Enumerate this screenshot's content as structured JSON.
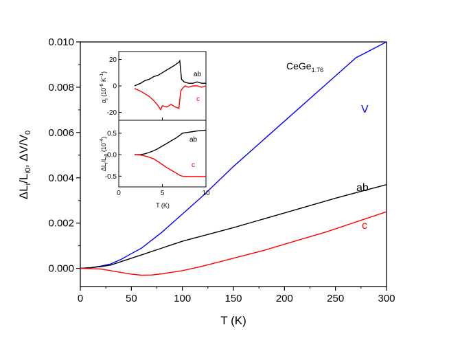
{
  "chart_data": {
    "main": {
      "type": "line",
      "xlabel": "T (K)",
      "ylabel": "ΔL_i/L_i0, ΔV/V_0",
      "xlim": [
        0,
        300
      ],
      "ylim": [
        -0.0008,
        0.01
      ],
      "xticks": [
        "0",
        "50",
        "100",
        "150",
        "200",
        "250",
        "300"
      ],
      "yticks": [
        "0.000",
        "0.002",
        "0.004",
        "0.006",
        "0.008",
        "0.010"
      ],
      "compound": {
        "base": "CeGe",
        "sub": "1.76"
      },
      "series": [
        {
          "name": "V",
          "color": "#0000ff",
          "x": [
            0,
            10,
            20,
            30,
            40,
            50,
            60,
            70,
            80,
            100,
            120,
            150,
            180,
            210,
            240,
            270,
            300
          ],
          "y": [
            0.0,
            3e-05,
            0.0001,
            0.0002,
            0.0004,
            0.00065,
            0.0009,
            0.00125,
            0.0016,
            0.0024,
            0.0032,
            0.0045,
            0.0057,
            0.0069,
            0.0081,
            0.0093,
            0.0104
          ]
        },
        {
          "name": "ab",
          "color": "#000000",
          "x": [
            0,
            10,
            20,
            30,
            40,
            50,
            60,
            80,
            100,
            150,
            200,
            250,
            300
          ],
          "y": [
            0.0,
            3e-05,
            8e-05,
            0.00015,
            0.0003,
            0.00045,
            0.0006,
            0.0009,
            0.0012,
            0.0018,
            0.00245,
            0.0031,
            0.0037
          ]
        },
        {
          "name": "c",
          "color": "#ff0000",
          "x": [
            0,
            10,
            20,
            30,
            40,
            50,
            60,
            70,
            80,
            100,
            120,
            150,
            180,
            210,
            240,
            270,
            300
          ],
          "y": [
            0.0,
            -1e-05,
            -3e-05,
            -0.0001,
            -0.00018,
            -0.00025,
            -0.0003,
            -0.00029,
            -0.00024,
            -0.0001,
            0.0001,
            0.00045,
            0.0008,
            0.0012,
            0.0016,
            0.00205,
            0.0025
          ]
        }
      ]
    },
    "inset_top": {
      "type": "line",
      "ylabel": "α_i (10^-6 K^-1)",
      "xlim": [
        0,
        10
      ],
      "ylim": [
        -26,
        26
      ],
      "yticks": [
        "20",
        "0",
        "-20"
      ],
      "series": [
        {
          "name": "ab",
          "color": "#000000",
          "x": [
            1.8,
            2.5,
            3.0,
            3.5,
            4.0,
            4.5,
            5.0,
            5.5,
            6.0,
            6.5,
            6.9,
            7.0,
            7.2,
            7.5,
            8.0,
            8.5,
            9.0,
            9.5,
            10.0
          ],
          "y": [
            0,
            2,
            4,
            5,
            7,
            8,
            10,
            12,
            14,
            16,
            18,
            19,
            5,
            3,
            2,
            2,
            3,
            2,
            2
          ]
        },
        {
          "name": "c",
          "color": "#ff0000",
          "x": [
            1.8,
            2.5,
            3.0,
            3.5,
            4.0,
            4.5,
            4.8,
            5.0,
            5.5,
            6.0,
            6.5,
            6.9,
            7.1,
            7.3,
            7.6,
            8.0,
            8.5,
            9.0,
            9.5,
            10.0
          ],
          "y": [
            -2,
            -4,
            -6,
            -8,
            -11,
            -15,
            -18,
            -15,
            -16,
            -14,
            -16,
            -17,
            -4,
            -2,
            0,
            -1,
            0,
            0,
            -1,
            0
          ]
        }
      ]
    },
    "inset_bottom": {
      "type": "line",
      "xlabel": "T (K)",
      "ylabel": "ΔL_i/L_i0 (10^-4)",
      "xlim": [
        0,
        10
      ],
      "ylim": [
        -0.75,
        0.8
      ],
      "xticks": [
        "0",
        "5",
        "10"
      ],
      "yticks": [
        "0.5",
        "0.0",
        "-0.5"
      ],
      "series": [
        {
          "name": "ab",
          "color": "#000000",
          "x": [
            1.8,
            2.5,
            3,
            3.5,
            4,
            4.5,
            5,
            5.5,
            6,
            6.5,
            7,
            7.3,
            8,
            9,
            10
          ],
          "y": [
            0.0,
            0.0,
            0.02,
            0.05,
            0.09,
            0.14,
            0.2,
            0.26,
            0.32,
            0.38,
            0.45,
            0.5,
            0.52,
            0.55,
            0.57
          ]
        },
        {
          "name": "c",
          "color": "#ff0000",
          "x": [
            1.8,
            2.5,
            3,
            3.5,
            4,
            4.5,
            5,
            5.5,
            6,
            6.5,
            7,
            7.3,
            8,
            9,
            10
          ],
          "y": [
            0.0,
            -0.01,
            -0.03,
            -0.06,
            -0.1,
            -0.16,
            -0.23,
            -0.3,
            -0.36,
            -0.42,
            -0.48,
            -0.5,
            -0.51,
            -0.51,
            -0.51
          ]
        }
      ]
    }
  }
}
